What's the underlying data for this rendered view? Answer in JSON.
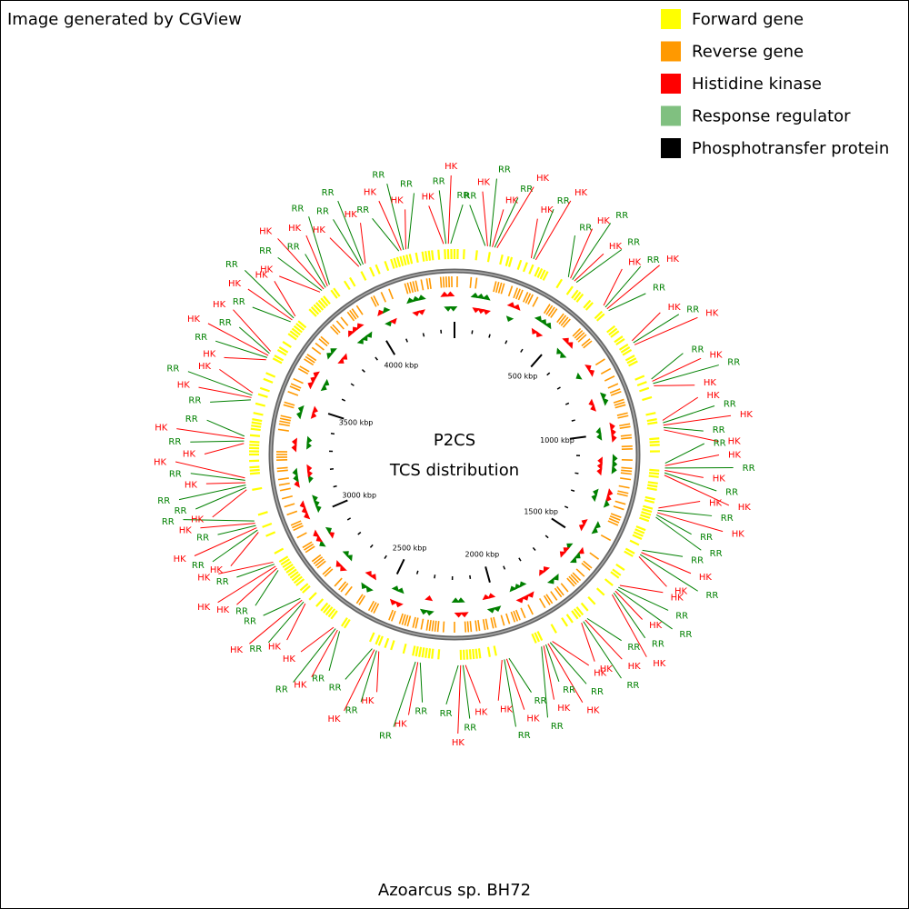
{
  "header": {
    "title": "Image generated by CGView"
  },
  "legend": [
    {
      "label": "Forward gene",
      "color": "#ffff00"
    },
    {
      "label": "Reverse gene",
      "color": "#ff9900"
    },
    {
      "label": "Histidine kinase",
      "color": "#ff0000"
    },
    {
      "label": "Response regulator",
      "color": "#80c080"
    },
    {
      "label": "Phosphotransfer protein",
      "color": "#000000"
    }
  ],
  "center": {
    "title": "P2CS",
    "subtitle": "TCS distribution"
  },
  "scale_labels": [
    "500 kbp",
    "1000 kbp",
    "1500 kbp",
    "2000 kbp",
    "2500 kbp",
    "3000 kbp",
    "3500 kbp",
    "4000 kbp"
  ],
  "label_groups": [
    [
      "RR",
      "HK",
      "RR",
      "HK",
      "RR",
      "HK"
    ],
    [
      "HK",
      "RR",
      "HK"
    ],
    [
      "RR",
      "HK",
      "RR",
      "HK",
      "RR"
    ],
    [
      "HK",
      "RR",
      "HK",
      "RR"
    ],
    [
      "HK",
      "RR",
      "HK"
    ],
    [
      "RR",
      "HK",
      "RR",
      "HK"
    ],
    [
      "HK",
      "RR",
      "HK",
      "RR",
      "HK"
    ],
    [
      "RR",
      "HK",
      "RR",
      "HK",
      "RR",
      "HK"
    ],
    [
      "HK",
      "RR",
      "HK",
      "RR",
      "RR"
    ],
    [
      "RR",
      "HK",
      "RR",
      "HK"
    ],
    [
      "HK",
      "RR",
      "RR",
      "HK",
      "RR",
      "HK"
    ],
    [
      "RR",
      "HK",
      "RR",
      "HK"
    ],
    [
      "HK",
      "RR",
      "HK",
      "RR",
      "HK",
      "RR"
    ],
    [
      "RR",
      "HK",
      "RR",
      "HK"
    ],
    [
      "HK",
      "RR",
      "HK",
      "RR"
    ],
    [
      "RR",
      "HK",
      "RR"
    ],
    [
      "HK",
      "RR",
      "HK",
      "RR"
    ],
    [
      "RR",
      "HK",
      "RR",
      "HK"
    ],
    [
      "HK",
      "RR",
      "HK",
      "RR"
    ],
    [
      "RR",
      "HK",
      "HK",
      "RR",
      "HK"
    ],
    [
      "HK",
      "RR",
      "HK",
      "RR",
      "HK",
      "RR"
    ],
    [
      "HK",
      "RR",
      "RR",
      "HK",
      "RR",
      "HK"
    ],
    [
      "HK",
      "RR",
      "HK",
      "RR"
    ],
    [
      "RR",
      "HK",
      "RR",
      "HK"
    ],
    [
      "HK",
      "RR",
      "HK",
      "RR",
      "HK"
    ],
    [
      "RR",
      "HK",
      "RR",
      "HK"
    ],
    [
      "HK",
      "RR",
      "HK",
      "RR",
      "HK",
      "RR"
    ],
    [
      "HK",
      "RR",
      "RR",
      "HK"
    ],
    [
      "RR",
      "HK",
      "RR",
      "HK",
      "RR"
    ],
    [
      "HK",
      "RR",
      "HK",
      "RR"
    ]
  ],
  "footer": {
    "caption": "Azoarcus sp. BH72"
  }
}
